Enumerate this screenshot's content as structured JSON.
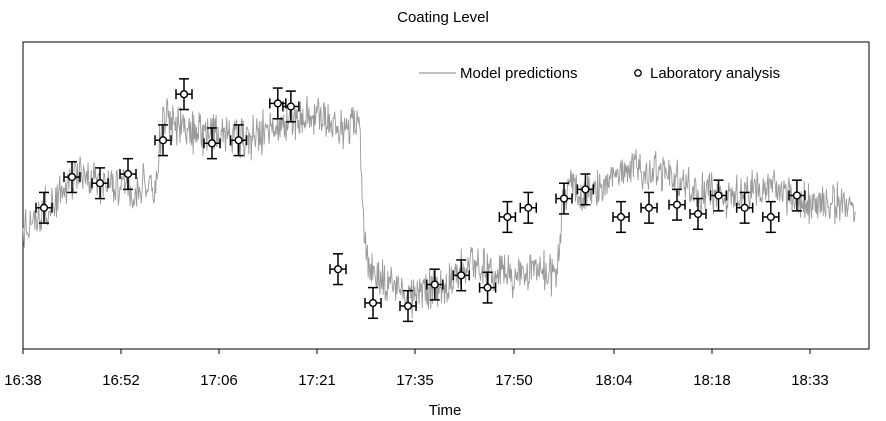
{
  "chart_data": {
    "type": "scatter",
    "title": "Coating Level",
    "xlabel": "Time",
    "ylabel": "",
    "x_ticks": [
      "16:38",
      "16:52",
      "17:06",
      "17:21",
      "17:35",
      "17:50",
      "18:04",
      "18:18",
      "18:33"
    ],
    "grid": false,
    "legend_position": "top-right",
    "y_axis_labels": false,
    "series": [
      {
        "name": "Model predictions",
        "kind": "line",
        "color": "#9a9a9a",
        "x": [
          "16:38",
          "16:42",
          "16:46",
          "16:50",
          "16:54",
          "16:57",
          "16:58",
          "17:02",
          "17:06",
          "17:10",
          "17:14",
          "17:18",
          "17:21",
          "17:24",
          "17:27",
          "17:28",
          "17:31",
          "17:35",
          "17:39",
          "17:43",
          "17:47",
          "17:50",
          "17:54",
          "17:56",
          "17:57",
          "18:01",
          "18:05",
          "18:08",
          "18:12",
          "18:16",
          "18:20",
          "18:25",
          "18:29",
          "18:33",
          "18:37",
          "18:40"
        ],
        "y": [
          0.4,
          0.47,
          0.57,
          0.53,
          0.52,
          0.54,
          0.78,
          0.7,
          0.7,
          0.68,
          0.72,
          0.74,
          0.78,
          0.72,
          0.74,
          0.28,
          0.22,
          0.17,
          0.21,
          0.27,
          0.25,
          0.24,
          0.26,
          0.24,
          0.52,
          0.51,
          0.57,
          0.59,
          0.55,
          0.52,
          0.5,
          0.52,
          0.51,
          0.48,
          0.47,
          0.46
        ]
      },
      {
        "name": "Laboratory analysis",
        "kind": "points_with_error_bars",
        "marker": "open-circle",
        "error": 0.05,
        "x": [
          "16:41",
          "16:45",
          "16:49",
          "16:53",
          "16:58",
          "17:01",
          "17:05",
          "17:09",
          "17:15",
          "17:17",
          "17:24",
          "17:29",
          "17:34",
          "17:38",
          "17:42",
          "17:46",
          "17:49",
          "17:52",
          "17:57",
          "18:00",
          "18:05",
          "18:09",
          "18:13",
          "18:16",
          "18:19",
          "18:23",
          "18:27",
          "18:31"
        ],
        "y": [
          0.46,
          0.56,
          0.54,
          0.57,
          0.68,
          0.83,
          0.67,
          0.68,
          0.8,
          0.79,
          0.26,
          0.15,
          0.14,
          0.21,
          0.24,
          0.2,
          0.43,
          0.46,
          0.49,
          0.52,
          0.43,
          0.46,
          0.47,
          0.44,
          0.5,
          0.46,
          0.43,
          0.5
        ]
      }
    ]
  }
}
